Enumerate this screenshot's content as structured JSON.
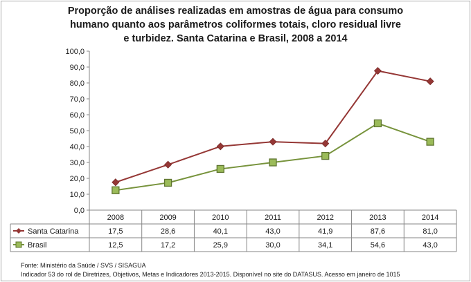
{
  "title": {
    "line1": "Proporção de análises realizadas em amostras de água para consumo",
    "line2": "humano quanto aos parâmetros coliformes totais, cloro residual livre",
    "line3": "e turbidez. Santa Catarina e Brasil, 2008 a 2014"
  },
  "source": {
    "line1": "Fonte: Ministério da Saúde / SVS / SISAGUA",
    "line2": "Indicador 53  do rol de Diretrizes, Objetivos, Metas e Indicadores 2013-2015. Disponível no site do DATASUS. Acesso em janeiro de 1015"
  },
  "chart_data": {
    "type": "line",
    "title": "Proporção de análises realizadas em amostras de água para consumo humano quanto aos parâmetros coliformes totais, cloro residual livre e turbidez. Santa Catarina e Brasil, 2008 a 2014",
    "categories": [
      "2008",
      "2009",
      "2010",
      "2011",
      "2012",
      "2013",
      "2014"
    ],
    "ylim": [
      0,
      100
    ],
    "yticks": [
      "0,0",
      "10,0",
      "20,0",
      "30,0",
      "40,0",
      "50,0",
      "60,0",
      "70,0",
      "80,0",
      "90,0",
      "100,0"
    ],
    "grid": false,
    "data_table": true,
    "series": [
      {
        "name": "Santa Catarina",
        "values": [
          17.5,
          28.6,
          40.1,
          43.0,
          41.9,
          87.6,
          81.0
        ],
        "labels": [
          "17,5",
          "28,6",
          "40,1",
          "43,0",
          "41,9",
          "87,6",
          "81,0"
        ],
        "color": "#953735",
        "marker": "diamond"
      },
      {
        "name": "Brasil",
        "values": [
          12.5,
          17.2,
          25.9,
          30.0,
          34.1,
          54.6,
          43.0
        ],
        "labels": [
          "12,5",
          "17,2",
          "25,9",
          "30,0",
          "34,1",
          "54,6",
          "43,0"
        ],
        "color": "#77933c",
        "marker": "square"
      }
    ]
  }
}
